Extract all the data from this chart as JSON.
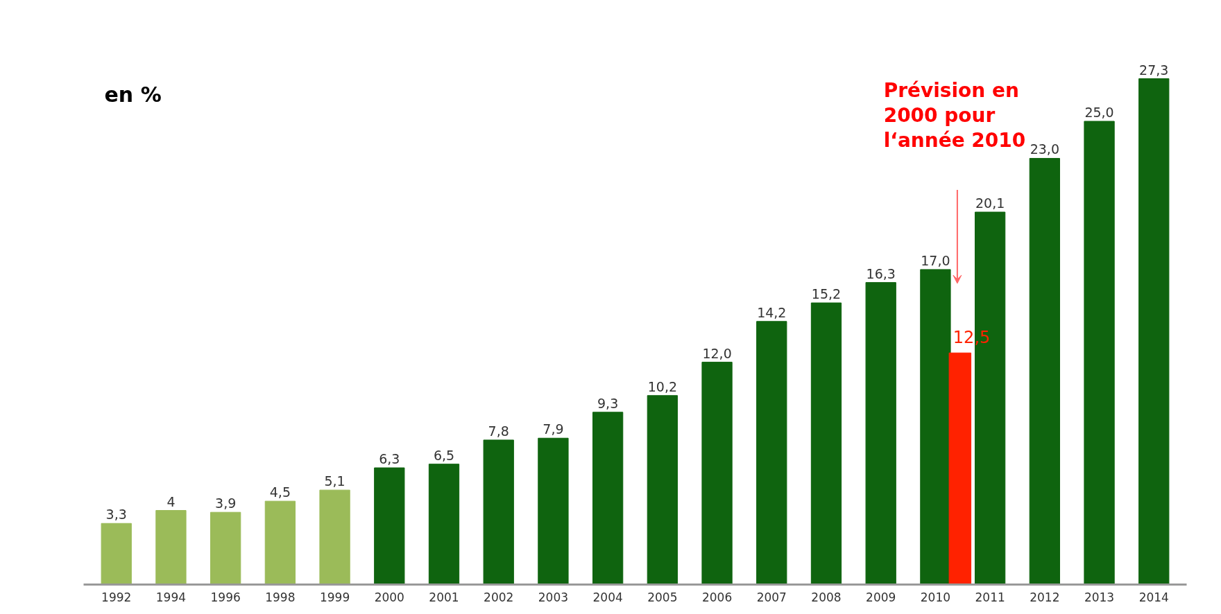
{
  "chart_data": {
    "type": "bar",
    "ylabel": "en %",
    "grid": false,
    "categories": [
      "1992",
      "1994",
      "1996",
      "1998",
      "1999",
      "2000",
      "2001",
      "2002",
      "2003",
      "2004",
      "2005",
      "2006",
      "2007",
      "2008",
      "2009",
      "2010",
      "2011",
      "2012",
      "2013",
      "2014"
    ],
    "series": [
      {
        "colors": [
          "#9bbb59",
          "#9bbb59",
          "#9bbb59",
          "#9bbb59",
          "#9bbb59",
          "#0f640f",
          "#0f640f",
          "#0f640f",
          "#0f640f",
          "#0f640f",
          "#0f640f",
          "#0f640f",
          "#0f640f",
          "#0f640f",
          "#0f640f",
          "#0f640f",
          "#0f640f",
          "#0f640f",
          "#0f640f",
          "#0f640f"
        ],
        "values": [
          3.3,
          4,
          3.9,
          4.5,
          5.1,
          6.3,
          6.5,
          7.8,
          7.9,
          9.3,
          10.2,
          12.0,
          14.2,
          15.2,
          16.3,
          17.0,
          20.1,
          23.0,
          25.0,
          27.3
        ],
        "value_labels": [
          "3,3",
          "4",
          "3,9",
          "4,5",
          "5,1",
          "6,3",
          "6,5",
          "7,8",
          "7,9",
          "9,3",
          "10,2",
          "12,0",
          "14,2",
          "15,2",
          "16,3",
          "17,0",
          "20,1",
          "23,0",
          "25,0",
          "27,3"
        ]
      },
      {
        "color": "#ff2200",
        "values": [
          null,
          null,
          null,
          null,
          null,
          null,
          null,
          null,
          null,
          null,
          null,
          null,
          null,
          null,
          null,
          12.5,
          null,
          null,
          null,
          null
        ],
        "value_labels": [
          null,
          null,
          null,
          null,
          null,
          null,
          null,
          null,
          null,
          null,
          null,
          null,
          null,
          null,
          null,
          "12,5",
          null,
          null,
          null,
          null
        ]
      }
    ],
    "annotations": [
      "Prévision en 2000 pour l‘année 2010"
    ]
  }
}
